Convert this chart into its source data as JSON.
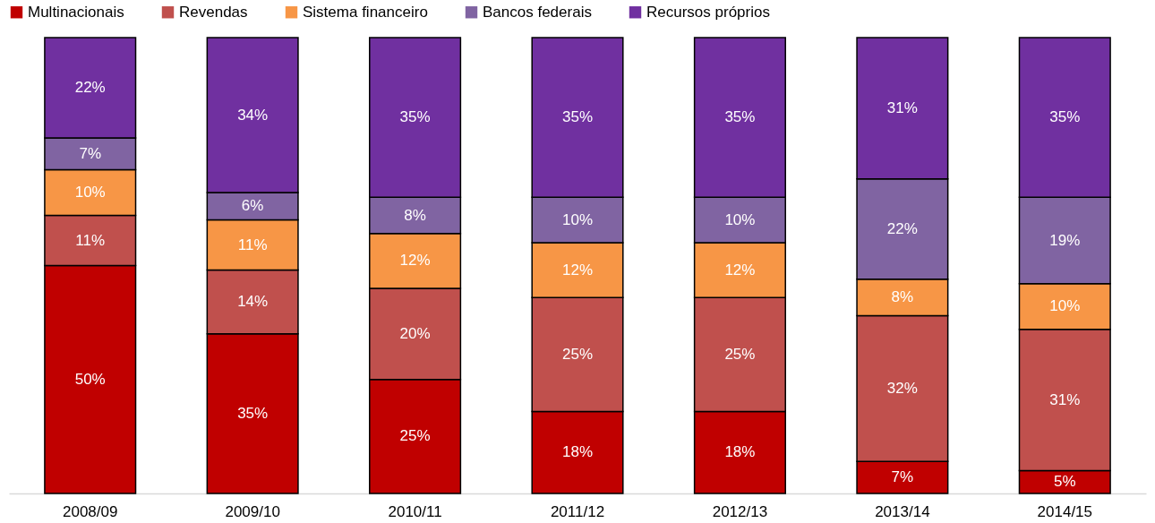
{
  "chart_data": {
    "type": "bar",
    "stacked": true,
    "legend": "top",
    "tick_labels": "x",
    "categories": [
      "2008/09",
      "2009/10",
      "2010/11",
      "2011/12",
      "2012/13",
      "2013/14",
      "2014/15"
    ],
    "series": [
      {
        "name": "Multinacionais",
        "color": "#c00000",
        "values": [
          50,
          35,
          25,
          18,
          18,
          7,
          5
        ],
        "value_labels": [
          "50%",
          "35%",
          "25%",
          "18%",
          "18%",
          "7%",
          "5%"
        ]
      },
      {
        "name": "Revendas",
        "color": "#c0504d",
        "values": [
          11,
          14,
          20,
          25,
          25,
          32,
          31
        ],
        "value_labels": [
          "11%",
          "14%",
          "20%",
          "25%",
          "25%",
          "32%",
          "31%"
        ]
      },
      {
        "name": "Sistema financeiro",
        "color": "#f79646",
        "values": [
          10,
          11,
          12,
          12,
          12,
          8,
          10
        ],
        "value_labels": [
          "10%",
          "11%",
          "12%",
          "12%",
          "12%",
          "8%",
          "10%"
        ]
      },
      {
        "name": "Bancos federais",
        "color": "#8064a2",
        "values": [
          7,
          6,
          8,
          10,
          10,
          22,
          19
        ],
        "value_labels": [
          "7%",
          "6%",
          "8%",
          "10%",
          "10%",
          "22%",
          "19%"
        ]
      },
      {
        "name": "Recursos próprios",
        "color": "#7030a0",
        "values": [
          22,
          34,
          35,
          35,
          35,
          31,
          35
        ],
        "value_labels": [
          "22%",
          "34%",
          "35%",
          "35%",
          "35%",
          "31%",
          "35%"
        ]
      }
    ]
  }
}
